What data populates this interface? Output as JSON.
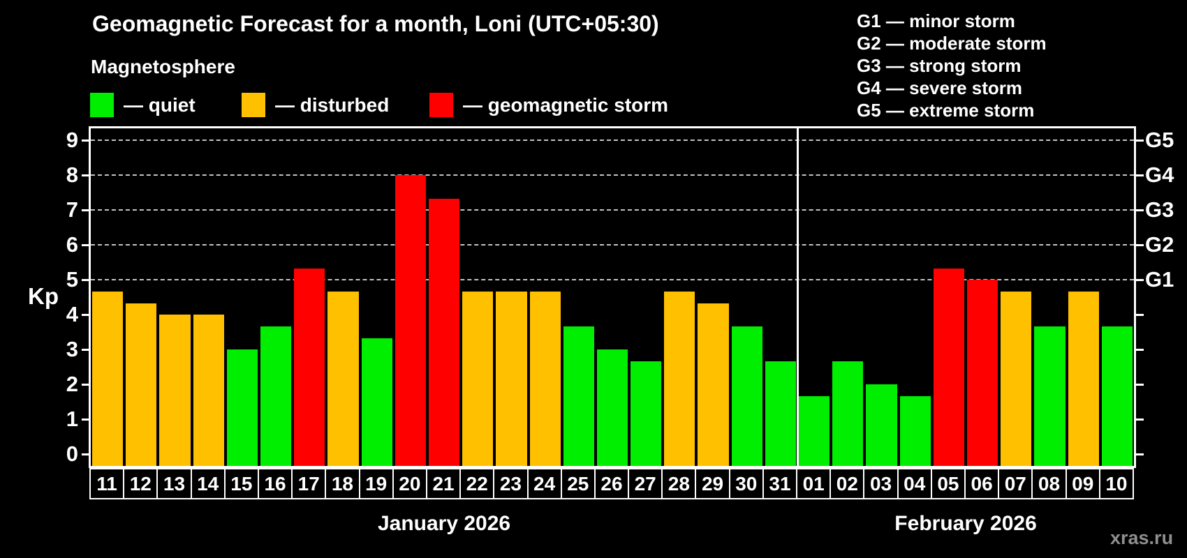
{
  "title": "Geomagnetic Forecast for a month, Loni (UTC+05:30)",
  "subtitle": "Magnetosphere",
  "legend": [
    {
      "key": "quiet",
      "label": "— quiet",
      "color": "#00ee00"
    },
    {
      "key": "disturbed",
      "label": "— disturbed",
      "color": "#ffc000"
    },
    {
      "key": "storm",
      "label": "— geomagnetic storm",
      "color": "#ff0000"
    }
  ],
  "g_legend": [
    "G1 — minor storm",
    "G2 — moderate storm",
    "G3 — strong storm",
    "G4 — severe storm",
    "G5 — extreme storm"
  ],
  "watermark": "xras.ru",
  "chart_data": {
    "type": "bar",
    "title": "Geomagnetic Forecast for a month, Loni (UTC+05:30)",
    "xlabel": "",
    "ylabel": "Kp",
    "ylim": [
      0,
      9
    ],
    "y_ticks": [
      0,
      1,
      2,
      3,
      4,
      5,
      6,
      7,
      8,
      9
    ],
    "gridlines_at": [
      5,
      6,
      7,
      8,
      9
    ],
    "right_axis_labels": {
      "5": "G1",
      "6": "G2",
      "7": "G3",
      "8": "G4",
      "9": "G5"
    },
    "grid": true,
    "legend_position": "top-left",
    "months": [
      {
        "label": "January 2026",
        "days": [
          {
            "day": "11",
            "kp": 4.67,
            "status": "disturbed"
          },
          {
            "day": "12",
            "kp": 4.33,
            "status": "disturbed"
          },
          {
            "day": "13",
            "kp": 4.0,
            "status": "disturbed"
          },
          {
            "day": "14",
            "kp": 4.0,
            "status": "disturbed"
          },
          {
            "day": "15",
            "kp": 3.0,
            "status": "quiet"
          },
          {
            "day": "16",
            "kp": 3.67,
            "status": "quiet"
          },
          {
            "day": "17",
            "kp": 5.33,
            "status": "storm"
          },
          {
            "day": "18",
            "kp": 4.67,
            "status": "disturbed"
          },
          {
            "day": "19",
            "kp": 3.33,
            "status": "quiet"
          },
          {
            "day": "20",
            "kp": 8.0,
            "status": "storm"
          },
          {
            "day": "21",
            "kp": 7.33,
            "status": "storm"
          },
          {
            "day": "22",
            "kp": 4.67,
            "status": "disturbed"
          },
          {
            "day": "23",
            "kp": 4.67,
            "status": "disturbed"
          },
          {
            "day": "24",
            "kp": 4.67,
            "status": "disturbed"
          },
          {
            "day": "25",
            "kp": 3.67,
            "status": "quiet"
          },
          {
            "day": "26",
            "kp": 3.0,
            "status": "quiet"
          },
          {
            "day": "27",
            "kp": 2.67,
            "status": "quiet"
          },
          {
            "day": "28",
            "kp": 4.67,
            "status": "disturbed"
          },
          {
            "day": "29",
            "kp": 4.33,
            "status": "disturbed"
          },
          {
            "day": "30",
            "kp": 3.67,
            "status": "quiet"
          },
          {
            "day": "31",
            "kp": 2.67,
            "status": "quiet"
          }
        ]
      },
      {
        "label": "February 2026",
        "days": [
          {
            "day": "01",
            "kp": 1.67,
            "status": "quiet"
          },
          {
            "day": "02",
            "kp": 2.67,
            "status": "quiet"
          },
          {
            "day": "03",
            "kp": 2.0,
            "status": "quiet"
          },
          {
            "day": "04",
            "kp": 1.67,
            "status": "quiet"
          },
          {
            "day": "05",
            "kp": 5.33,
            "status": "storm"
          },
          {
            "day": "06",
            "kp": 5.0,
            "status": "storm"
          },
          {
            "day": "07",
            "kp": 4.67,
            "status": "disturbed"
          },
          {
            "day": "08",
            "kp": 3.67,
            "status": "quiet"
          },
          {
            "day": "09",
            "kp": 4.67,
            "status": "disturbed"
          },
          {
            "day": "10",
            "kp": 3.67,
            "status": "quiet"
          }
        ]
      }
    ]
  }
}
